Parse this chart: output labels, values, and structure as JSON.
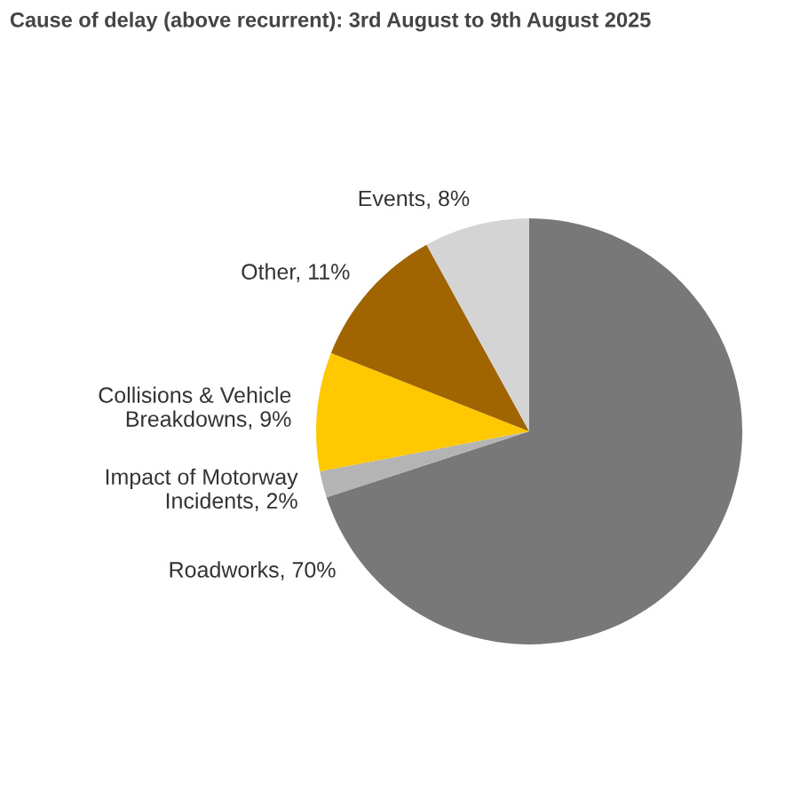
{
  "chart_data": {
    "type": "pie",
    "title": "Cause of delay (above recurrent): 3rd August to 9th August 2025",
    "categories": [
      "Roadworks",
      "Impact of Motorway Incidents",
      "Collisions & Vehicle Breakdowns",
      "Other",
      "Events"
    ],
    "values": [
      70,
      2,
      9,
      11,
      8
    ],
    "value_labels": [
      "70%",
      "2%",
      "9%",
      "11%",
      "8%"
    ],
    "colors": [
      "#787878",
      "#b4b4b4",
      "#ffc800",
      "#a06400",
      "#d4d4d4"
    ],
    "legend": false
  }
}
